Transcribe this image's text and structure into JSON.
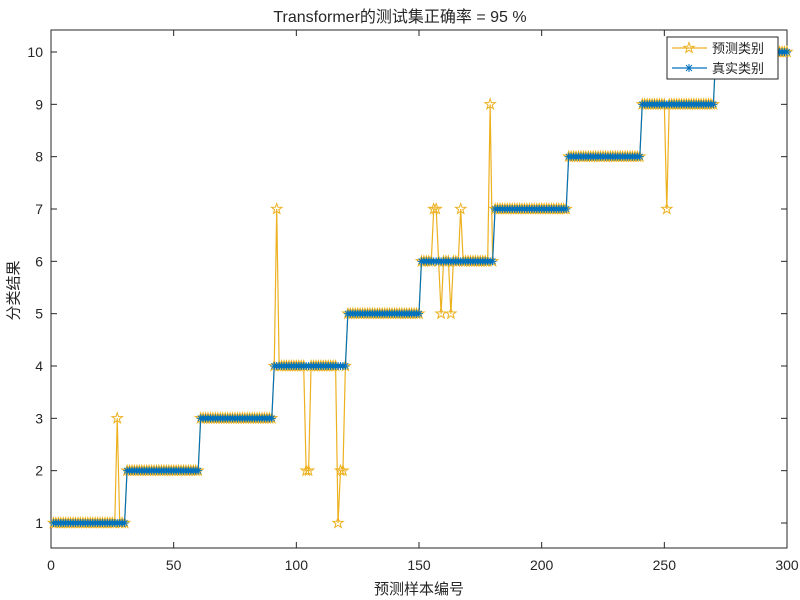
{
  "chart_data": {
    "type": "line",
    "title": "Transformer的测试集正确率 = 95 %",
    "xlabel": "预测样本编号",
    "ylabel": "分类结果",
    "xlim": [
      0,
      300
    ],
    "ylim": [
      0.5,
      10.5
    ],
    "xticks": [
      0,
      50,
      100,
      150,
      200,
      250,
      300
    ],
    "yticks": [
      1,
      2,
      3,
      4,
      5,
      6,
      7,
      8,
      9,
      10
    ],
    "grid": false,
    "legend_position": "northeast",
    "n_samples": 300,
    "true_class_segments": [
      {
        "from": 1,
        "to": 30,
        "class": 1
      },
      {
        "from": 31,
        "to": 60,
        "class": 2
      },
      {
        "from": 61,
        "to": 90,
        "class": 3
      },
      {
        "from": 91,
        "to": 120,
        "class": 4
      },
      {
        "from": 121,
        "to": 150,
        "class": 5
      },
      {
        "from": 151,
        "to": 180,
        "class": 6
      },
      {
        "from": 181,
        "to": 210,
        "class": 7
      },
      {
        "from": 211,
        "to": 240,
        "class": 8
      },
      {
        "from": 241,
        "to": 270,
        "class": 9
      },
      {
        "from": 271,
        "to": 300,
        "class": 10
      }
    ],
    "misclassified": [
      {
        "sample": 27,
        "predicted": 3
      },
      {
        "sample": 92,
        "predicted": 7
      },
      {
        "sample": 104,
        "predicted": 2
      },
      {
        "sample": 105,
        "predicted": 2
      },
      {
        "sample": 117,
        "predicted": 1
      },
      {
        "sample": 118,
        "predicted": 2
      },
      {
        "sample": 119,
        "predicted": 2
      },
      {
        "sample": 156,
        "predicted": 7
      },
      {
        "sample": 157,
        "predicted": 7
      },
      {
        "sample": 159,
        "predicted": 5
      },
      {
        "sample": 163,
        "predicted": 5
      },
      {
        "sample": 167,
        "predicted": 7
      },
      {
        "sample": 179,
        "predicted": 9
      },
      {
        "sample": 251,
        "predicted": 7
      }
    ],
    "series": [
      {
        "name": "预测类别",
        "color": "#EDB120",
        "marker": "pentagram"
      },
      {
        "name": "真实类别",
        "color": "#0072BD",
        "marker": "asterisk"
      }
    ]
  },
  "legend": {
    "items": [
      {
        "label": "预测类别"
      },
      {
        "label": "真实类别"
      }
    ]
  }
}
